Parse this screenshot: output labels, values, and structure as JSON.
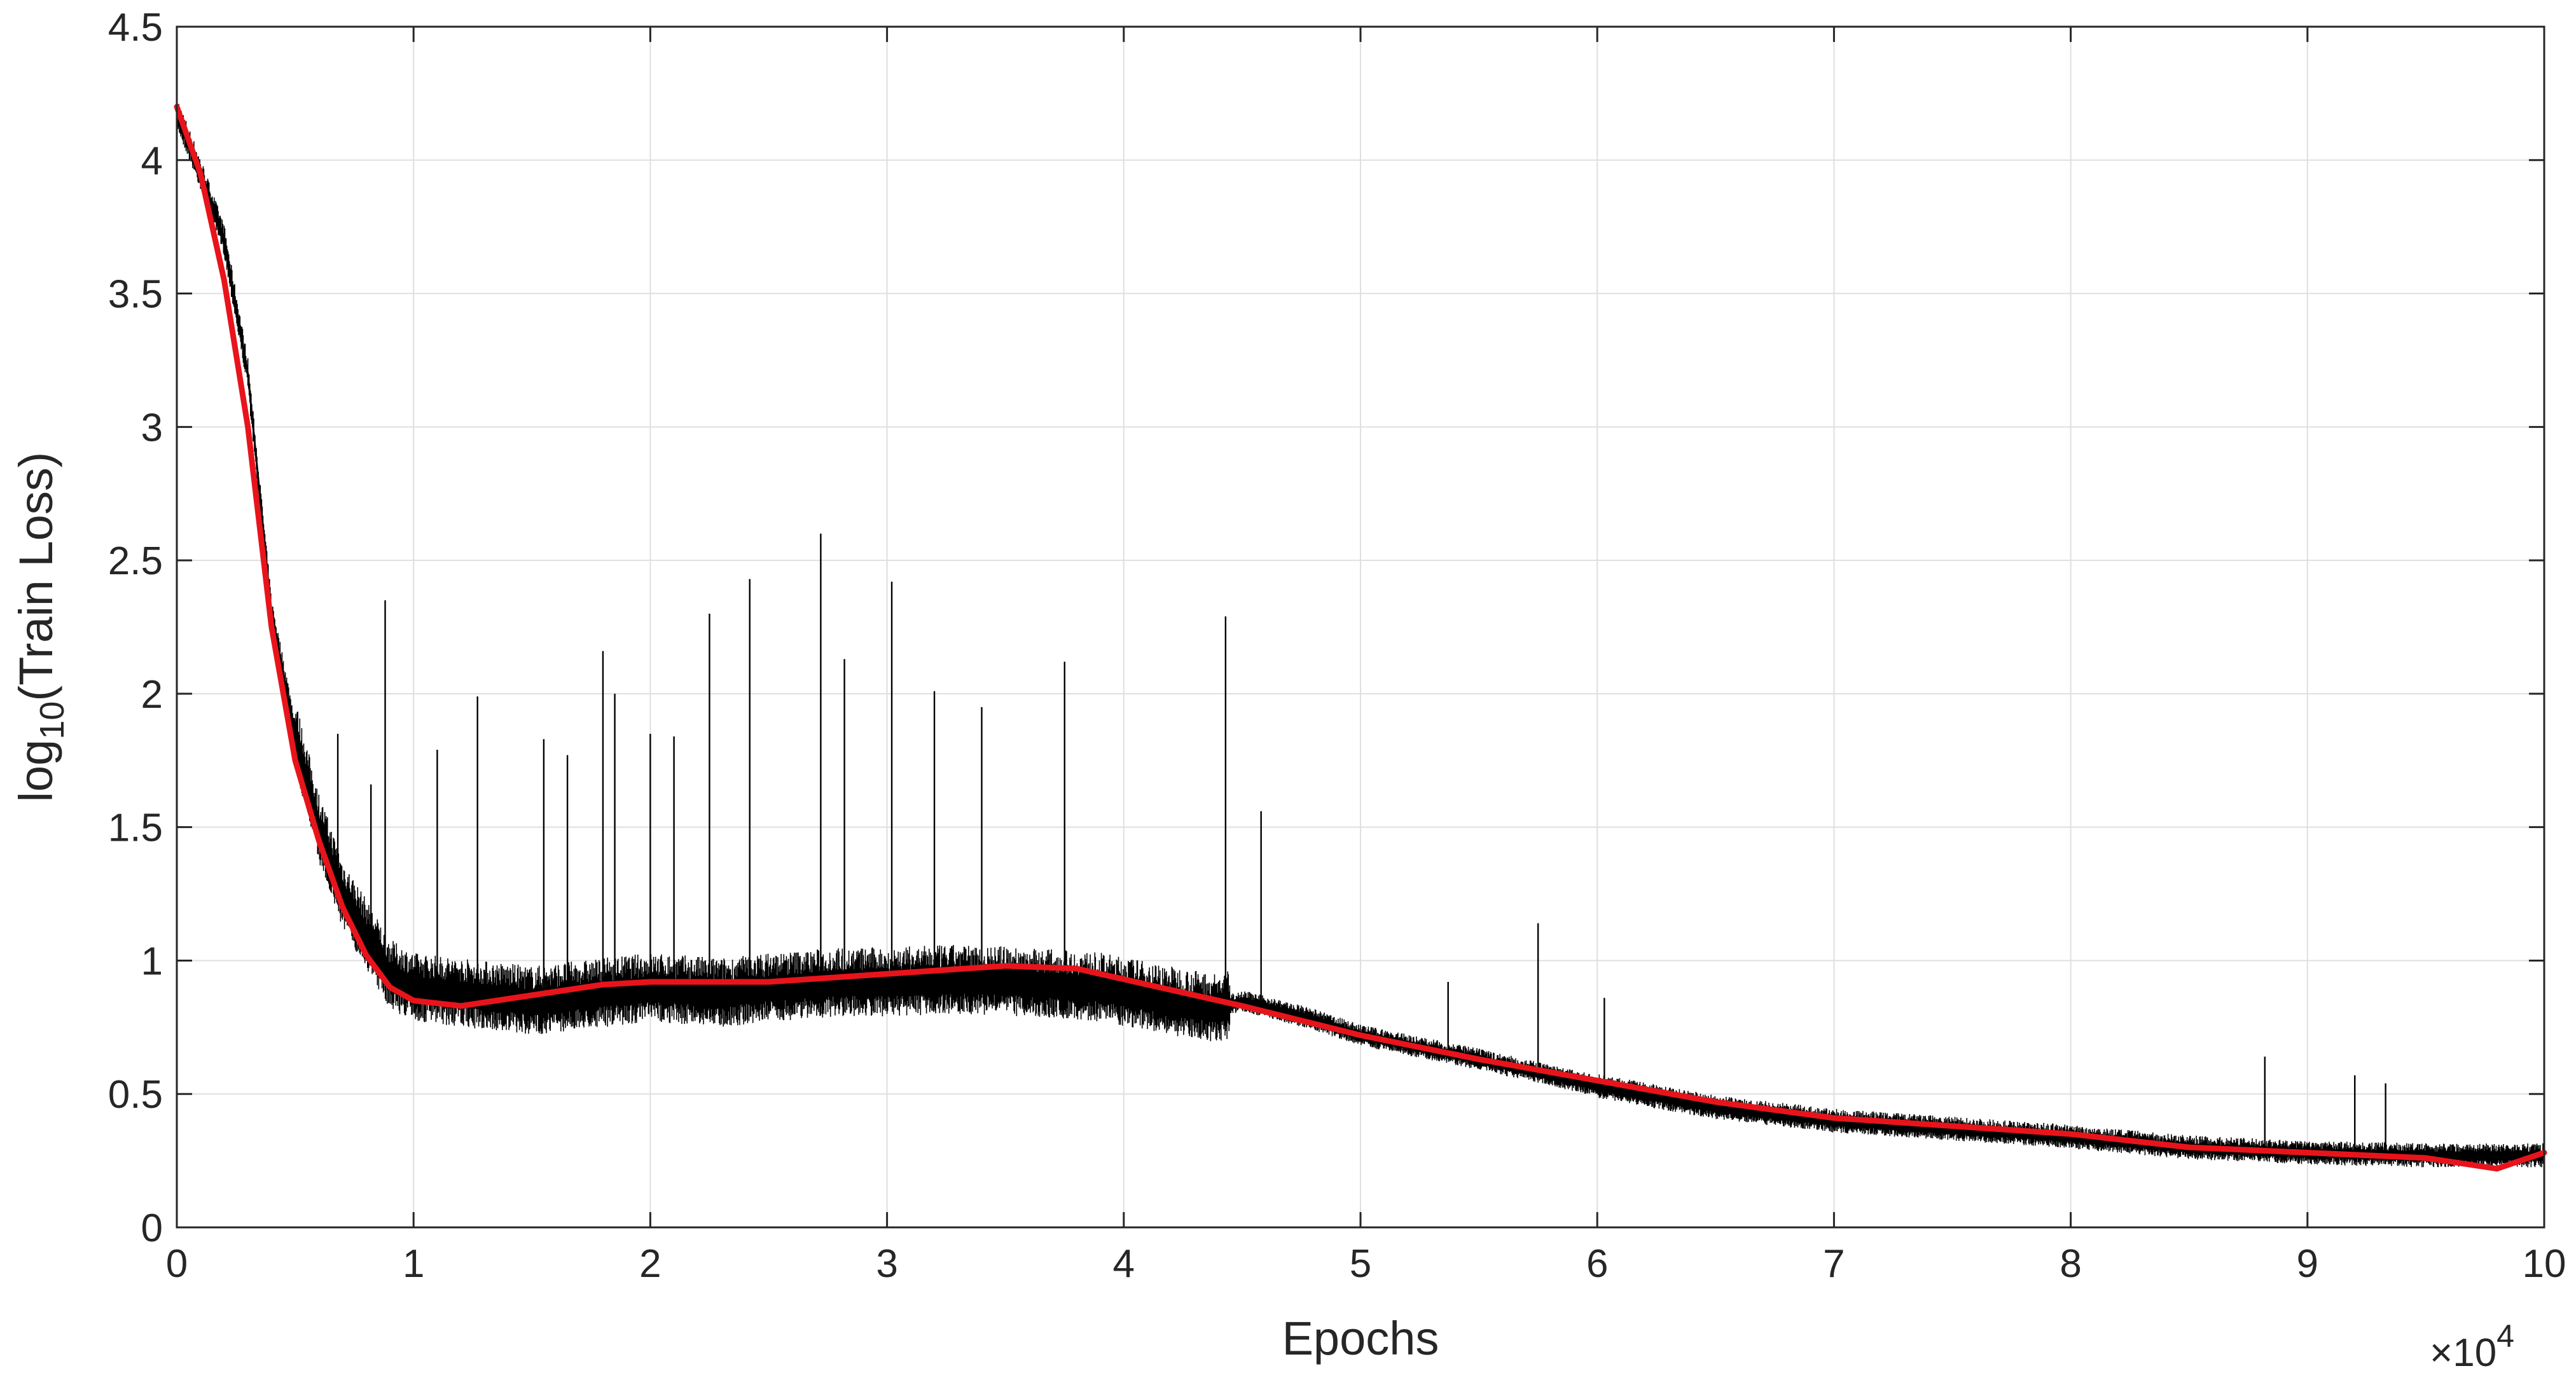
{
  "chart_data": {
    "type": "line",
    "title": "",
    "xlabel": "Epochs",
    "ylabel": "log10(Train Loss)",
    "ylabel_parts": {
      "base": "log",
      "subscript": "10",
      "rest": "(Train Loss)"
    },
    "x_exponent_label": {
      "times": "×10",
      "power": "4"
    },
    "xlim": [
      0,
      10
    ],
    "ylim": [
      0,
      4.5
    ],
    "x_scale_note": "x values in units of 10^4 epochs",
    "xticks": [
      0,
      1,
      2,
      3,
      4,
      5,
      6,
      7,
      8,
      9,
      10
    ],
    "xtick_labels": [
      "0",
      "1",
      "2",
      "3",
      "4",
      "5",
      "6",
      "7",
      "8",
      "9",
      "10"
    ],
    "yticks": [
      0,
      0.5,
      1,
      1.5,
      2,
      2.5,
      3,
      3.5,
      4,
      4.5
    ],
    "ytick_labels": [
      "0",
      "0.5",
      "1",
      "1.5",
      "2",
      "2.5",
      "3",
      "3.5",
      "4",
      "4.5"
    ],
    "grid": true,
    "colors": {
      "raw": "#000000",
      "smooth": "#e8141b",
      "grid": "#dfdfdf",
      "axis": "#262626"
    },
    "series": [
      {
        "kind": "raw",
        "points": [
          [
            0.0,
            4.18
          ],
          [
            0.1,
            3.95
          ],
          [
            0.2,
            3.7
          ],
          [
            0.3,
            3.2
          ],
          [
            0.4,
            2.3
          ],
          [
            0.5,
            1.85
          ],
          [
            0.6,
            1.5
          ],
          [
            0.7,
            1.25
          ],
          [
            0.8,
            1.1
          ],
          [
            0.9,
            0.95
          ],
          [
            1.0,
            0.9
          ],
          [
            1.2,
            0.88
          ],
          [
            1.5,
            0.85
          ],
          [
            1.8,
            0.88
          ],
          [
            2.0,
            0.9
          ],
          [
            2.3,
            0.88
          ],
          [
            2.5,
            0.9
          ],
          [
            2.8,
            0.92
          ],
          [
            3.0,
            0.92
          ],
          [
            3.3,
            0.93
          ],
          [
            3.6,
            0.92
          ],
          [
            3.9,
            0.9
          ],
          [
            4.2,
            0.85
          ],
          [
            4.4,
            0.82
          ],
          [
            4.5,
            0.85
          ],
          [
            4.8,
            0.78
          ],
          [
            5.0,
            0.72
          ],
          [
            5.5,
            0.63
          ],
          [
            6.0,
            0.53
          ],
          [
            6.5,
            0.45
          ],
          [
            7.0,
            0.4
          ],
          [
            7.5,
            0.37
          ],
          [
            8.0,
            0.34
          ],
          [
            8.5,
            0.3
          ],
          [
            9.0,
            0.28
          ],
          [
            9.5,
            0.27
          ],
          [
            10.0,
            0.27
          ]
        ],
        "spikes": [
          [
            0.68,
            1.85
          ],
          [
            0.82,
            1.66
          ],
          [
            0.88,
            2.35
          ],
          [
            1.1,
            1.79
          ],
          [
            1.27,
            1.99
          ],
          [
            1.55,
            1.83
          ],
          [
            1.65,
            1.77
          ],
          [
            1.8,
            2.16
          ],
          [
            1.85,
            2.0
          ],
          [
            2.0,
            1.85
          ],
          [
            2.1,
            1.84
          ],
          [
            2.25,
            2.3
          ],
          [
            2.42,
            2.43
          ],
          [
            2.72,
            2.6
          ],
          [
            2.82,
            2.13
          ],
          [
            3.02,
            2.42
          ],
          [
            3.2,
            2.01
          ],
          [
            3.4,
            1.95
          ],
          [
            3.75,
            2.12
          ],
          [
            4.43,
            2.29
          ],
          [
            4.58,
            1.56
          ],
          [
            5.37,
            0.92
          ],
          [
            5.75,
            1.14
          ],
          [
            6.03,
            0.86
          ],
          [
            8.82,
            0.64
          ],
          [
            9.2,
            0.57
          ],
          [
            9.33,
            0.54
          ]
        ]
      },
      {
        "kind": "smoothed",
        "points": [
          [
            0.0,
            4.2
          ],
          [
            0.1,
            3.95
          ],
          [
            0.2,
            3.55
          ],
          [
            0.3,
            3.0
          ],
          [
            0.4,
            2.25
          ],
          [
            0.5,
            1.75
          ],
          [
            0.6,
            1.45
          ],
          [
            0.7,
            1.2
          ],
          [
            0.8,
            1.02
          ],
          [
            0.9,
            0.9
          ],
          [
            1.0,
            0.85
          ],
          [
            1.2,
            0.83
          ],
          [
            1.5,
            0.87
          ],
          [
            1.8,
            0.91
          ],
          [
            2.0,
            0.92
          ],
          [
            2.5,
            0.92
          ],
          [
            3.0,
            0.95
          ],
          [
            3.5,
            0.98
          ],
          [
            3.8,
            0.97
          ],
          [
            4.0,
            0.93
          ],
          [
            4.5,
            0.83
          ],
          [
            5.0,
            0.72
          ],
          [
            5.5,
            0.63
          ],
          [
            6.0,
            0.55
          ],
          [
            6.5,
            0.47
          ],
          [
            7.0,
            0.41
          ],
          [
            7.5,
            0.38
          ],
          [
            8.0,
            0.35
          ],
          [
            8.5,
            0.3
          ],
          [
            9.0,
            0.28
          ],
          [
            9.5,
            0.26
          ],
          [
            9.8,
            0.22
          ],
          [
            10.0,
            0.28
          ]
        ]
      }
    ]
  }
}
